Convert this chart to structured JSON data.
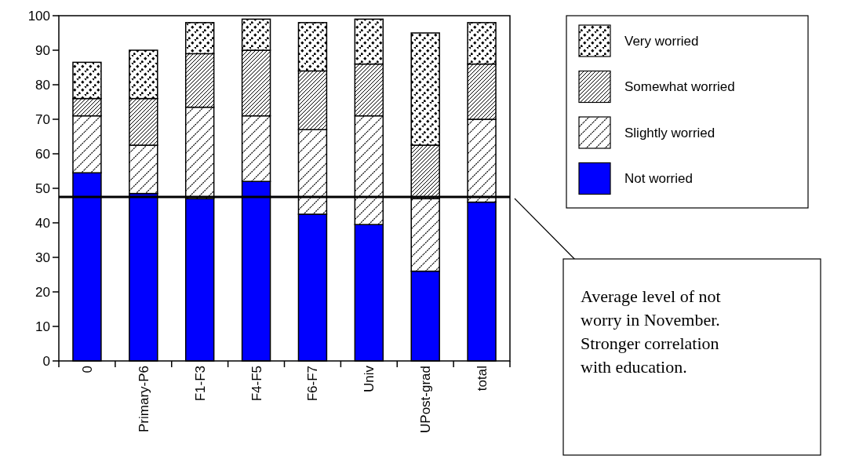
{
  "chart_data": {
    "type": "bar",
    "stacked": true,
    "categories": [
      "0",
      "Primary-P6",
      "F1-F3",
      "F4-F5",
      "F6-F7",
      "Univ",
      "UPost-grad",
      "total"
    ],
    "series": [
      {
        "name": "Not worried",
        "color": "#0000ff",
        "values": [
          54.5,
          48.5,
          47,
          52,
          42.5,
          39.5,
          26,
          46
        ]
      },
      {
        "name": "Slightly worried",
        "color": "#ffffff",
        "values": [
          16.5,
          14,
          26.5,
          19,
          24.5,
          31.5,
          21,
          24
        ]
      },
      {
        "name": "Somewhat worried",
        "color": "#ffffff",
        "values": [
          5,
          13.5,
          15.5,
          19,
          17,
          15,
          15.5,
          16
        ]
      },
      {
        "name": "Very worried",
        "color": "#ffffff",
        "values": [
          10.5,
          14,
          9,
          9,
          14,
          13,
          32.5,
          12
        ]
      }
    ],
    "ylim": [
      0,
      100
    ],
    "yticks": [
      0,
      10,
      20,
      30,
      40,
      50,
      60,
      70,
      80,
      90,
      100
    ],
    "ref_lines": [
      {
        "axis": "y",
        "value": 47.5,
        "label": "Average level of not worry in November. Stronger correlation with education.",
        "color": "#000000"
      }
    ],
    "legend": "top right"
  }
}
